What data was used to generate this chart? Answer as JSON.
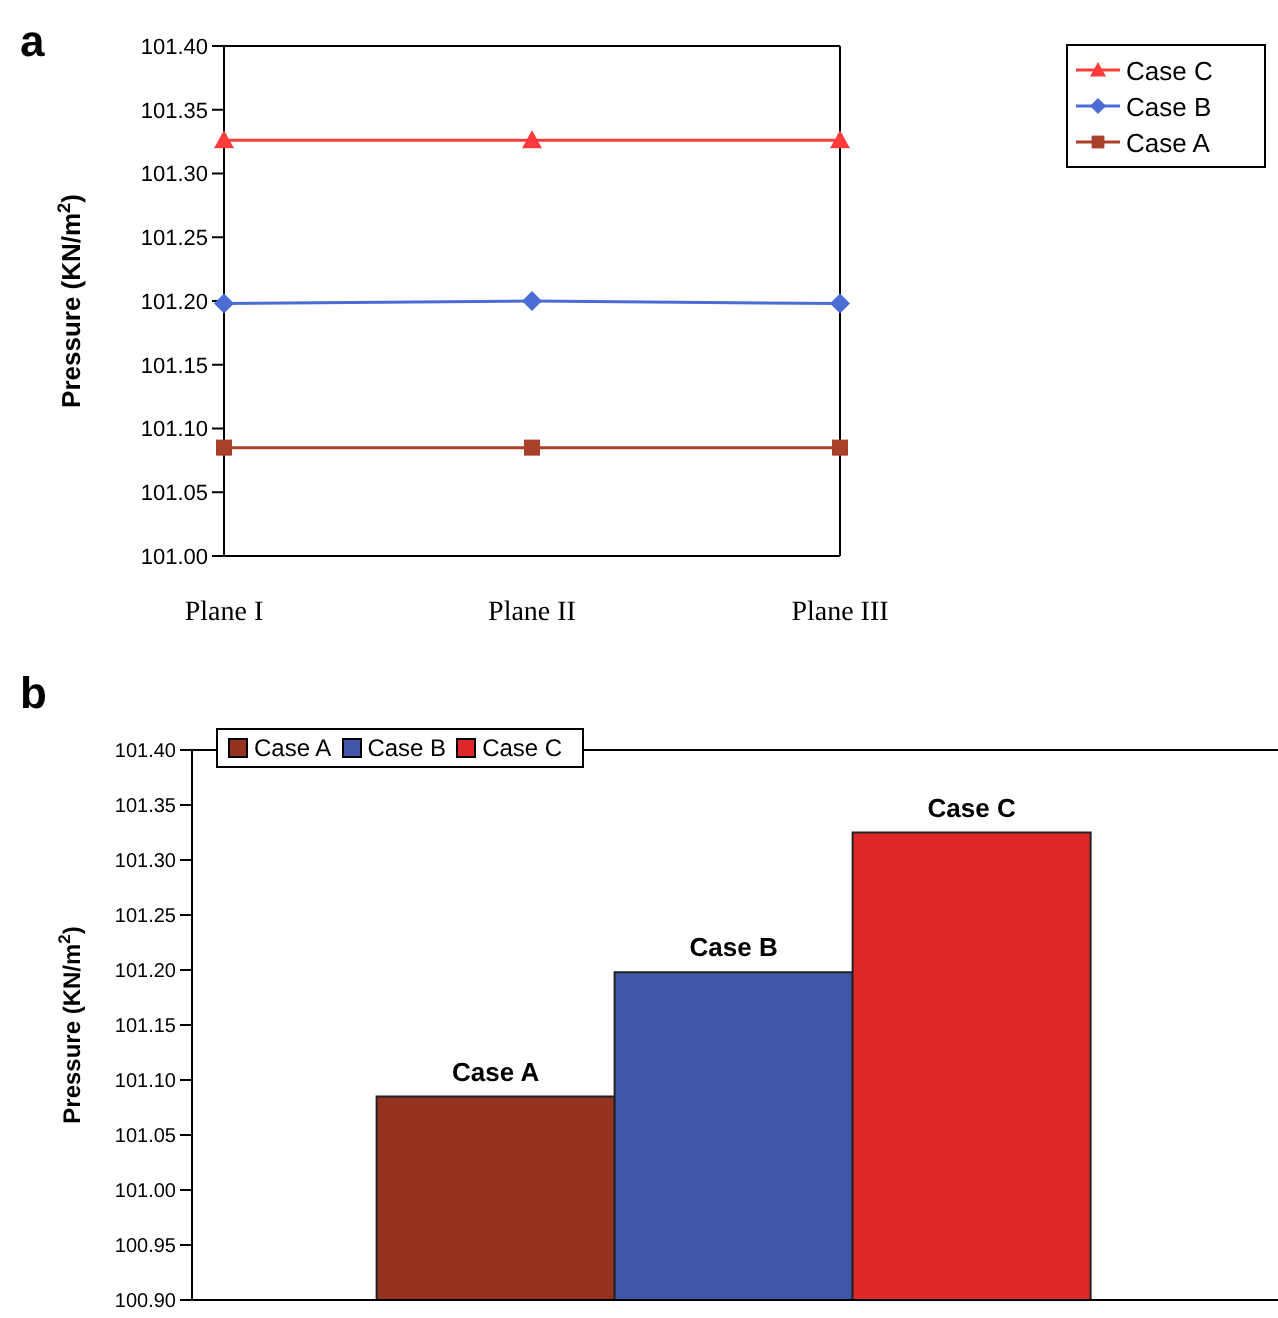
{
  "chart_data": [
    {
      "type": "line",
      "title": "a",
      "ylabel": "Pressure (KN/m$^{2}$)",
      "categories": [
        "Plane I",
        "Plane II",
        "Plane III"
      ],
      "series": [
        {
          "name": "Case C",
          "color": "#ff3b3b",
          "marker": "triangle",
          "values": [
            101.326,
            101.326,
            101.326
          ]
        },
        {
          "name": "Case B",
          "color": "#4a6cd4",
          "marker": "diamond",
          "values": [
            101.198,
            101.2,
            101.198
          ]
        },
        {
          "name": "Case A",
          "color": "#a8402a",
          "marker": "square",
          "values": [
            101.085,
            101.085,
            101.085
          ]
        }
      ],
      "ylim": [
        101.0,
        101.4
      ],
      "yticks": [
        {
          "value": 101.0,
          "label": "101.00"
        },
        {
          "value": 101.05,
          "label": "101.05"
        },
        {
          "value": 101.1,
          "label": "101.10"
        },
        {
          "value": 101.15,
          "label": "101.15"
        },
        {
          "value": 101.2,
          "label": "101.20"
        },
        {
          "value": 101.25,
          "label": "101.25"
        },
        {
          "value": 101.3,
          "label": "101.30"
        },
        {
          "value": 101.35,
          "label": "101.35"
        },
        {
          "value": 101.4,
          "label": "101.40"
        }
      ],
      "grid": false,
      "legend": "top right",
      "line_style": "solid"
    },
    {
      "type": "bar",
      "title": "b",
      "ylabel": "Pressure (KN/m$^{2}$)",
      "categories": [
        null
      ],
      "series": [
        {
          "name": "Case A",
          "color": "#963320",
          "values": [
            101.085
          ]
        },
        {
          "name": "Case B",
          "color": "#4056a8",
          "values": [
            101.198
          ]
        },
        {
          "name": "Case C",
          "color": "#e02828",
          "values": [
            101.325
          ]
        }
      ],
      "ylim": [
        100.9,
        101.4
      ],
      "yticks": [
        {
          "value": 100.9,
          "label": "100.90"
        },
        {
          "value": 100.95,
          "label": "100.95"
        },
        {
          "value": 101.0,
          "label": "101.00"
        },
        {
          "value": 101.05,
          "label": "101.05"
        },
        {
          "value": 101.1,
          "label": "101.10"
        },
        {
          "value": 101.15,
          "label": "101.15"
        },
        {
          "value": 101.2,
          "label": "101.20"
        },
        {
          "value": 101.25,
          "label": "101.25"
        },
        {
          "value": 101.3,
          "label": "101.30"
        },
        {
          "value": 101.35,
          "label": "101.35"
        },
        {
          "value": 101.4,
          "label": "101.40"
        }
      ],
      "grid": false,
      "legend": "top left",
      "tick_labels": "y"
    }
  ]
}
